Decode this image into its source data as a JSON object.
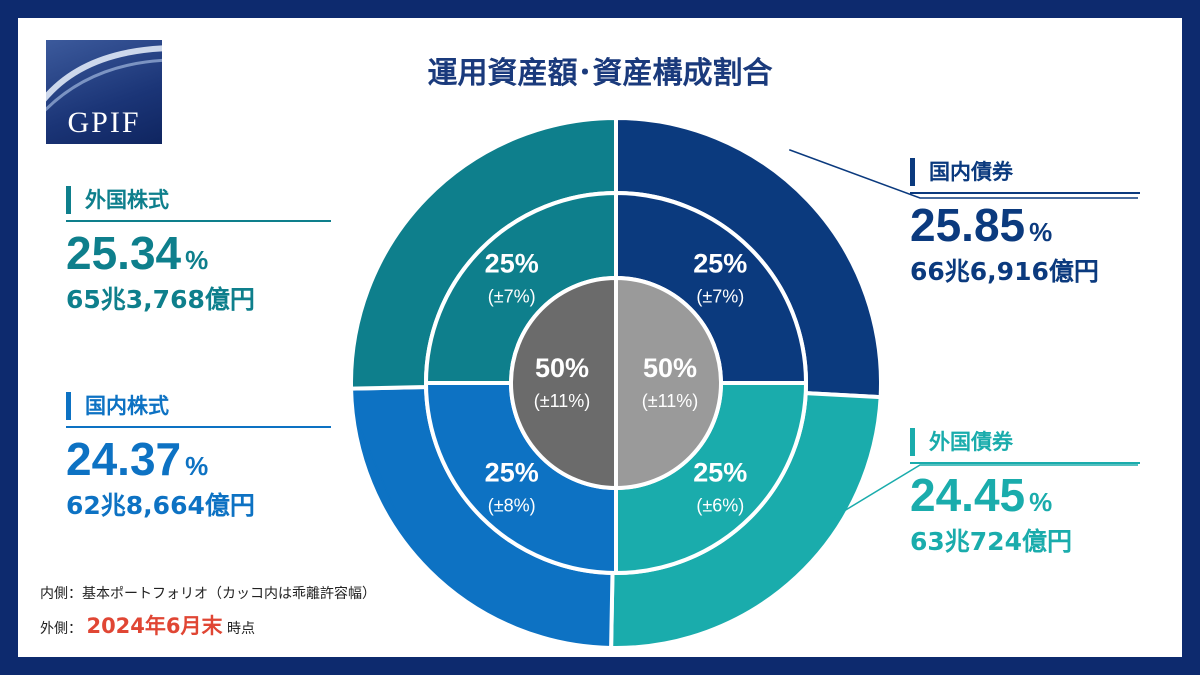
{
  "title": "運用資産額･資産構成割合",
  "logo": {
    "text": "GPIF"
  },
  "colors": {
    "domestic_bond": "#0b3a7e",
    "foreign_bond": "#1aacac",
    "domestic_equity": "#0d72c3",
    "foreign_equity": "#0e7f8c",
    "center_left": "#6b6b6b",
    "center_right": "#9a9a9a"
  },
  "chart_data": {
    "type": "pie",
    "outer_label": "2024年6月末 時点",
    "inner_label": "基本ポートフォリオ（カッコ内は乖離許容幅）",
    "series_outer": [
      {
        "name": "国内債券",
        "value": 25.85,
        "amount": "66兆6,916億円"
      },
      {
        "name": "外国債券",
        "value": 24.45,
        "amount": "63兆724億円"
      },
      {
        "name": "国内株式",
        "value": 24.37,
        "amount": "62兆8,664億円"
      },
      {
        "name": "外国株式",
        "value": 25.34,
        "amount": "65兆3,768億円"
      }
    ],
    "series_inner": [
      {
        "name": "国内債券",
        "value": 25,
        "tolerance": "(±7%)"
      },
      {
        "name": "外国債券",
        "value": 25,
        "tolerance": "(±6%)"
      },
      {
        "name": "国内株式",
        "value": 25,
        "tolerance": "(±8%)"
      },
      {
        "name": "外国株式",
        "value": 25,
        "tolerance": "(±7%)"
      }
    ],
    "center": [
      {
        "value": 50,
        "tolerance": "(±11%)"
      },
      {
        "value": 50,
        "tolerance": "(±11%)"
      }
    ]
  },
  "labels": {
    "domestic_bond": {
      "name": "国内債券",
      "pct": "25.85",
      "unit": "%",
      "amount": "66兆6,916億円"
    },
    "foreign_bond": {
      "name": "外国債券",
      "pct": "24.45",
      "unit": "%",
      "amount": "63兆724億円"
    },
    "domestic_equity": {
      "name": "国内株式",
      "pct": "24.37",
      "unit": "%",
      "amount": "62兆8,664億円"
    },
    "foreign_equity": {
      "name": "外国株式",
      "pct": "25.34",
      "unit": "%",
      "amount": "65兆3,768億円"
    }
  },
  "footer": {
    "inner_prefix": "内側：",
    "inner_text": "基本ポートフォリオ（カッコ内は乖離許容幅）",
    "outer_prefix": "外側：",
    "outer_date": "2024年6月末",
    "outer_suffix": "時点"
  }
}
